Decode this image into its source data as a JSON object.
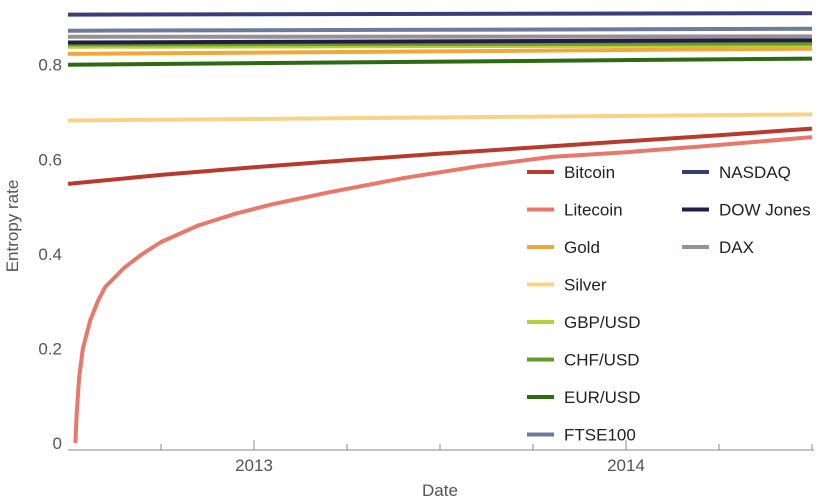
{
  "chart_data": {
    "type": "line",
    "title": "",
    "xlabel": "Date",
    "ylabel": "Entropy rate",
    "xlim": [
      2012.5,
      2014.5
    ],
    "ylim": [
      0,
      0.92
    ],
    "x_major_ticks": [
      {
        "value": 2013,
        "label": "2013"
      },
      {
        "value": 2014,
        "label": "2014"
      }
    ],
    "x_minor_ticks": [
      2012.75,
      2013.25,
      2013.5,
      2013.75,
      2014.25,
      2014.5
    ],
    "y_ticks": [
      {
        "value": 0,
        "label": "0"
      },
      {
        "value": 0.2,
        "label": "0.2"
      },
      {
        "value": 0.4,
        "label": "0.4"
      },
      {
        "value": 0.6,
        "label": "0.6"
      },
      {
        "value": 0.8,
        "label": "0.8"
      }
    ],
    "legend_position": "bottom-right",
    "series": [
      {
        "name": "Bitcoin",
        "color": "#b83a2e",
        "x": [
          2012.5,
          2012.75,
          2013.0,
          2013.25,
          2013.5,
          2013.75,
          2014.0,
          2014.25,
          2014.5
        ],
        "values": [
          0.548,
          0.567,
          0.583,
          0.598,
          0.612,
          0.625,
          0.638,
          0.651,
          0.665
        ]
      },
      {
        "name": "Litecoin",
        "color": "#e8786a",
        "x": [
          2012.52,
          2012.523,
          2012.53,
          2012.54,
          2012.56,
          2012.58,
          2012.6,
          2012.65,
          2012.7,
          2012.75,
          2012.85,
          2012.95,
          2013.05,
          2013.2,
          2013.4,
          2013.6,
          2013.8,
          2014.0,
          2014.2,
          2014.5
        ],
        "values": [
          0.0,
          0.06,
          0.14,
          0.2,
          0.26,
          0.3,
          0.33,
          0.37,
          0.4,
          0.425,
          0.46,
          0.485,
          0.505,
          0.53,
          0.56,
          0.585,
          0.605,
          0.615,
          0.627,
          0.647
        ]
      },
      {
        "name": "Gold",
        "color": "#f0a73c",
        "x": [
          2012.5,
          2014.5
        ],
        "values": [
          0.823,
          0.834
        ]
      },
      {
        "name": "Silver",
        "color": "#f8d386",
        "x": [
          2012.5,
          2014.5
        ],
        "values": [
          0.682,
          0.695
        ]
      },
      {
        "name": "GBP/USD",
        "color": "#b7cf3a",
        "x": [
          2012.5,
          2014.5
        ],
        "values": [
          0.838,
          0.841
        ]
      },
      {
        "name": "CHF/USD",
        "color": "#6c9a2a",
        "x": [
          2012.5,
          2014.5
        ],
        "values": [
          0.843,
          0.845
        ]
      },
      {
        "name": "EUR/USD",
        "color": "#2c6b12",
        "x": [
          2012.5,
          2014.5
        ],
        "values": [
          0.8,
          0.813
        ]
      },
      {
        "name": "FTSE100",
        "color": "#6b7b9b",
        "x": [
          2012.5,
          2014.5
        ],
        "values": [
          0.872,
          0.876
        ]
      },
      {
        "name": "NASDAQ",
        "color": "#3a3d78",
        "x": [
          2012.5,
          2014.5
        ],
        "values": [
          0.906,
          0.909
        ]
      },
      {
        "name": "DOW Jones",
        "color": "#1e1e48",
        "x": [
          2012.5,
          2014.5
        ],
        "values": [
          0.847,
          0.852
        ]
      },
      {
        "name": "DAX",
        "color": "#9a8f96",
        "x": [
          2012.5,
          2014.5
        ],
        "values": [
          0.859,
          0.86
        ]
      }
    ]
  }
}
